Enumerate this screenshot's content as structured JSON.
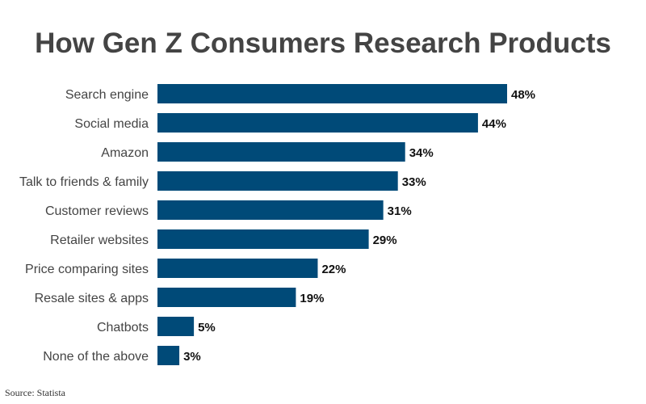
{
  "chart_data": {
    "type": "bar",
    "orientation": "horizontal",
    "title": "How Gen Z Consumers Research Products",
    "categories": [
      "Search engine",
      "Social media",
      "Amazon",
      "Talk to friends & family",
      "Customer reviews",
      "Retailer websites",
      "Price comparing sites",
      "Resale sites & apps",
      "Chatbots",
      "None of the above"
    ],
    "values": [
      48,
      44,
      34,
      33,
      31,
      29,
      22,
      19,
      5,
      3
    ],
    "value_labels": [
      "48%",
      "44%",
      "34%",
      "33%",
      "31%",
      "29%",
      "22%",
      "19%",
      "5%",
      "3%"
    ],
    "unit": "%",
    "xlim": [
      0,
      48
    ],
    "grid": false,
    "bar_color": "#004a78",
    "source": "Source: Statista"
  }
}
